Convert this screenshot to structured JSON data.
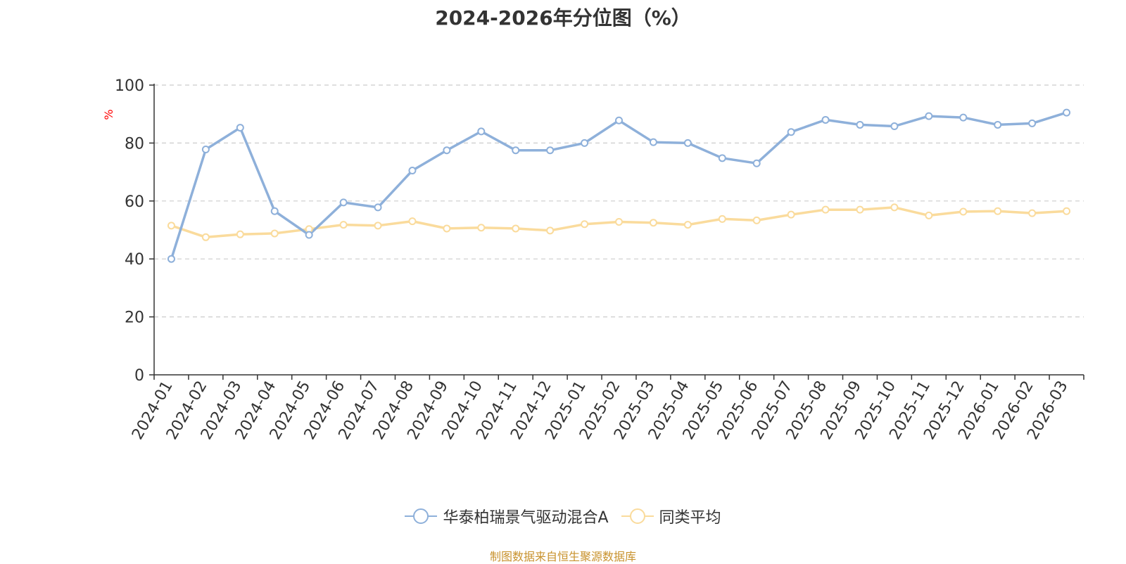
{
  "chart_data": {
    "type": "line",
    "title": "2024-2026年分位图（%）",
    "ylabel": "%",
    "xlabel": "",
    "ylim": [
      0,
      100
    ],
    "yticks": [
      0,
      20,
      40,
      60,
      80,
      100
    ],
    "grid": true,
    "legend_position": "bottom",
    "categories": [
      "2024-01",
      "2024-02",
      "2024-03",
      "2024-04",
      "2024-05",
      "2024-06",
      "2024-07",
      "2024-08",
      "2024-09",
      "2024-10",
      "2024-11",
      "2024-12",
      "2025-01",
      "2025-02",
      "2025-03",
      "2025-04",
      "2025-05",
      "2025-06",
      "2025-07",
      "2025-08",
      "2025-09",
      "2025-10",
      "2025-11",
      "2025-12",
      "2026-01",
      "2026-02",
      "2026-03"
    ],
    "series": [
      {
        "name": "华泰柏瑞景气驱动混合A",
        "color": "#8eb0da",
        "values": [
          40.0,
          77.8,
          85.3,
          56.5,
          48.3,
          59.5,
          57.8,
          70.5,
          77.5,
          84.0,
          77.5,
          77.5,
          80.0,
          87.8,
          80.3,
          80.0,
          74.8,
          73.0,
          83.8,
          88.0,
          86.3,
          85.8,
          89.3,
          88.8,
          86.3,
          86.8,
          90.5
        ]
      },
      {
        "name": "同类平均",
        "color": "#fadb9c",
        "values": [
          51.5,
          47.5,
          48.5,
          48.8,
          50.3,
          51.8,
          51.5,
          53.0,
          50.5,
          50.8,
          50.5,
          49.8,
          52.0,
          52.8,
          52.5,
          51.8,
          53.8,
          53.3,
          55.3,
          57.0,
          57.0,
          57.8,
          55.0,
          56.3,
          56.5,
          55.8,
          56.5
        ]
      }
    ],
    "note": "制图数据来自恒生聚源数据库"
  },
  "colors": {
    "axis": "#333333",
    "grid": "#cccccc",
    "ylabel": "#ff0000",
    "title": "#333333",
    "note": "#c8922d"
  }
}
